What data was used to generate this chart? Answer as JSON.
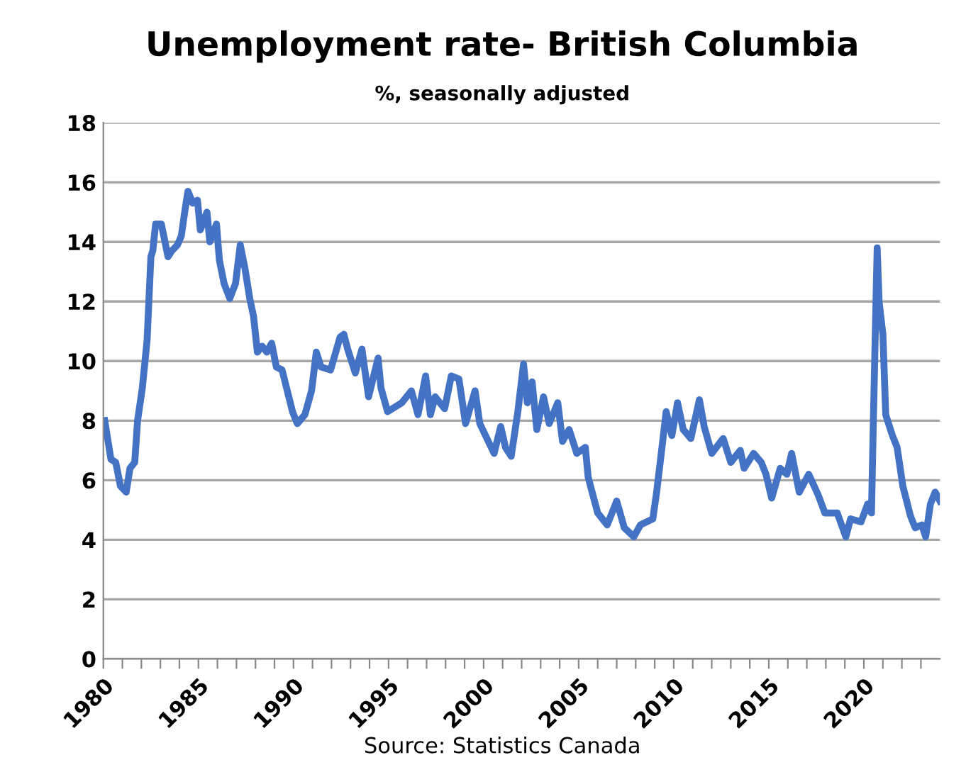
{
  "chart_data": {
    "type": "line",
    "title": "Unemployment rate- British Columbia",
    "subtitle": "%, seasonally adjusted",
    "x": [
      1980.07,
      1980.4,
      1980.65,
      1980.9,
      1981.2,
      1981.4,
      1981.65,
      1981.8,
      1982.05,
      1982.3,
      1982.5,
      1982.6,
      1982.75,
      1983.05,
      1983.4,
      1983.6,
      1983.9,
      1984.1,
      1984.3,
      1984.45,
      1984.7,
      1984.95,
      1985.1,
      1985.45,
      1985.6,
      1985.95,
      1986.1,
      1986.35,
      1986.65,
      1986.95,
      1987.2,
      1987.45,
      1987.7,
      1987.9,
      1988.1,
      1988.35,
      1988.6,
      1988.85,
      1989.1,
      1989.4,
      1989.95,
      1990.2,
      1990.6,
      1990.95,
      1991.2,
      1991.45,
      1991.95,
      1992.45,
      1992.65,
      1992.85,
      1993.25,
      1993.6,
      1993.95,
      1994.45,
      1994.6,
      1994.95,
      1995.7,
      1996.2,
      1996.55,
      1996.95,
      1997.2,
      1997.45,
      1997.95,
      1998.3,
      1998.7,
      1999.05,
      1999.55,
      1999.8,
      2000.55,
      2000.9,
      2001.15,
      2001.45,
      2001.8,
      2002.1,
      2002.3,
      2002.55,
      2002.8,
      2003.15,
      2003.45,
      2003.9,
      2004.15,
      2004.5,
      2004.9,
      2005.35,
      2005.5,
      2006.0,
      2006.5,
      2007.0,
      2007.4,
      2007.9,
      2008.25,
      2008.9,
      2009.1,
      2009.4,
      2009.6,
      2009.9,
      2010.2,
      2010.5,
      2010.9,
      2011.35,
      2011.6,
      2012.0,
      2012.6,
      2013.0,
      2013.5,
      2013.7,
      2014.2,
      2014.6,
      2014.85,
      2015.15,
      2015.6,
      2015.95,
      2016.2,
      2016.6,
      2017.1,
      2017.6,
      2017.95,
      2018.6,
      2019.05,
      2019.3,
      2019.85,
      2020.2,
      2020.4,
      2020.5,
      2020.7,
      2020.8,
      2021.0,
      2021.15,
      2021.5,
      2021.75,
      2022.05,
      2022.45,
      2022.7,
      2023.05,
      2023.25,
      2023.5,
      2023.75,
      2024.0
    ],
    "series": [
      {
        "color": "#4472c4",
        "values": [
          8.0,
          6.7,
          6.6,
          5.8,
          5.6,
          6.4,
          6.6,
          8.0,
          9.1,
          10.7,
          13.5,
          13.7,
          14.6,
          14.6,
          13.5,
          13.7,
          13.9,
          14.2,
          15.1,
          15.7,
          15.3,
          15.4,
          14.4,
          15.0,
          14.0,
          14.6,
          13.4,
          12.6,
          12.1,
          12.6,
          13.9,
          13.1,
          12.1,
          11.5,
          10.3,
          10.5,
          10.3,
          10.6,
          9.8,
          9.7,
          8.3,
          7.9,
          8.2,
          9.0,
          10.3,
          9.8,
          9.7,
          10.8,
          10.9,
          10.4,
          9.6,
          10.4,
          8.8,
          10.1,
          9.1,
          8.3,
          8.6,
          9.0,
          8.2,
          9.5,
          8.2,
          8.8,
          8.4,
          9.5,
          9.4,
          7.9,
          9.0,
          7.9,
          6.9,
          7.8,
          7.1,
          6.8,
          8.3,
          9.9,
          8.6,
          9.3,
          7.7,
          8.8,
          7.9,
          8.6,
          7.3,
          7.7,
          6.9,
          7.1,
          6.1,
          4.9,
          4.5,
          5.3,
          4.4,
          4.1,
          4.5,
          4.7,
          5.6,
          7.2,
          8.3,
          7.5,
          8.6,
          7.7,
          7.4,
          8.7,
          7.8,
          6.9,
          7.4,
          6.6,
          7.0,
          6.4,
          6.9,
          6.6,
          6.2,
          5.4,
          6.4,
          6.2,
          6.9,
          5.6,
          6.2,
          5.5,
          4.9,
          4.9,
          4.1,
          4.7,
          4.6,
          5.2,
          4.9,
          8.0,
          13.8,
          12.0,
          10.9,
          8.2,
          7.5,
          7.1,
          5.8,
          4.8,
          4.4,
          4.5,
          4.1,
          5.2,
          5.6,
          5.3
        ]
      }
    ],
    "xlim": [
      1980,
      2024
    ],
    "xticks": [
      1980,
      {
        "value": 1981,
        "label": null
      },
      {
        "value": 1982,
        "label": null
      },
      {
        "value": 1983,
        "label": null
      },
      {
        "value": 1984,
        "label": null
      },
      1985,
      {
        "value": 1986,
        "label": null
      },
      {
        "value": 1987,
        "label": null
      },
      {
        "value": 1988,
        "label": null
      },
      {
        "value": 1989,
        "label": null
      },
      1990,
      {
        "value": 1991,
        "label": null
      },
      {
        "value": 1992,
        "label": null
      },
      {
        "value": 1993,
        "label": null
      },
      {
        "value": 1994,
        "label": null
      },
      1995,
      {
        "value": 1996,
        "label": null
      },
      {
        "value": 1997,
        "label": null
      },
      {
        "value": 1998,
        "label": null
      },
      {
        "value": 1999,
        "label": null
      },
      2000,
      {
        "value": 2001,
        "label": null
      },
      {
        "value": 2002,
        "label": null
      },
      {
        "value": 2003,
        "label": null
      },
      {
        "value": 2004,
        "label": null
      },
      2005,
      {
        "value": 2006,
        "label": null
      },
      {
        "value": 2007,
        "label": null
      },
      {
        "value": 2008,
        "label": null
      },
      {
        "value": 2009,
        "label": null
      },
      2010,
      {
        "value": 2011,
        "label": null
      },
      {
        "value": 2012,
        "label": null
      },
      {
        "value": 2013,
        "label": null
      },
      {
        "value": 2014,
        "label": null
      },
      2015,
      {
        "value": 2016,
        "label": null
      },
      {
        "value": 2017,
        "label": null
      },
      {
        "value": 2018,
        "label": null
      },
      {
        "value": 2019,
        "label": null
      },
      2020,
      {
        "value": 2021,
        "label": null
      },
      {
        "value": 2022,
        "label": null
      },
      {
        "value": 2023,
        "label": null
      }
    ],
    "ylim": [
      0,
      18
    ],
    "yticks": [
      0,
      2,
      4,
      6,
      8,
      10,
      12,
      14,
      16,
      18
    ],
    "grid": "y",
    "legend": false,
    "marker": "none",
    "line_style": "solid",
    "annotations": [
      "Source: Statistics Canada"
    ]
  }
}
